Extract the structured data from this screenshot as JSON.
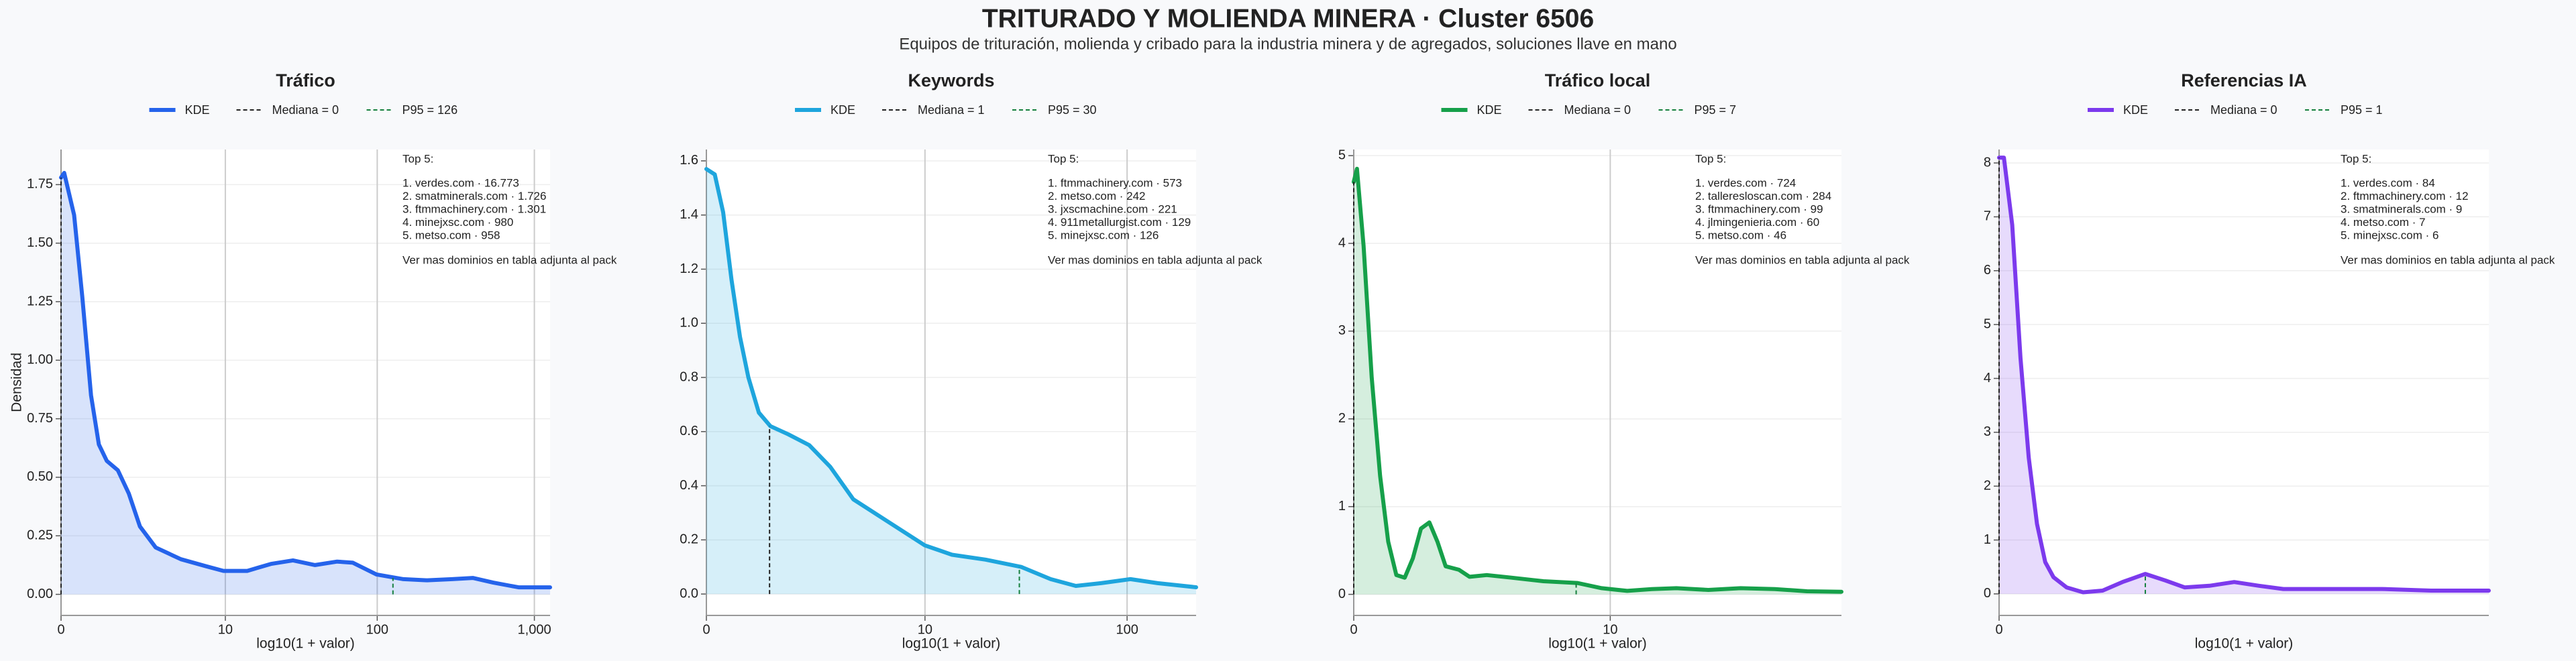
{
  "title": "TRITURADO Y MOLIENDA MINERA · Cluster 6506",
  "subtitle": "Equipos de trituración, molienda y cribado para la industria minera y de agregados, soluciones llave en mano",
  "chart_data": [
    {
      "type": "area",
      "title": "Tráfico",
      "xlabel": "log10(1 + valor)",
      "ylabel": "Densidad",
      "grid": true,
      "x": [
        0,
        0.02,
        0.083,
        0.135,
        0.19,
        0.24,
        0.29,
        0.36,
        0.43,
        0.5,
        0.6,
        0.76,
        0.92,
        1.03,
        1.18,
        1.33,
        1.47,
        1.61,
        1.75,
        1.85,
        2.0,
        2.17,
        2.32,
        2.48,
        2.61,
        2.74,
        2.9,
        3.1
      ],
      "series": [
        {
          "name": "KDE",
          "color": "#2563eb",
          "values": [
            1.78,
            1.8,
            1.62,
            1.27,
            0.85,
            0.64,
            0.57,
            0.53,
            0.43,
            0.29,
            0.2,
            0.15,
            0.12,
            0.1,
            0.1,
            0.13,
            0.145,
            0.125,
            0.14,
            0.135,
            0.085,
            0.065,
            0.06,
            0.065,
            0.07,
            0.05,
            0.03,
            0.03
          ]
        }
      ],
      "markers": [
        {
          "label": "Mediana = 0",
          "color": "#222222",
          "x": 0,
          "y": 1.78
        },
        {
          "label": "P95 = 126",
          "color": "#15803d",
          "x": 2.104,
          "y": 0.07
        }
      ],
      "xlim": [
        0,
        3.1
      ],
      "ylim": [
        -0.09,
        1.9
      ],
      "xticks": [
        0,
        {
          "value": 1.0414,
          "label": "10"
        },
        {
          "value": 2.0043,
          "label": "100"
        },
        {
          "value": 3.0004,
          "label": "1,000"
        }
      ],
      "yticks": [
        {
          "value": 0,
          "label": "0.00"
        },
        0.25,
        {
          "value": 0.5,
          "label": "0.50"
        },
        0.75,
        {
          "value": 1,
          "label": "1.00"
        },
        1.25,
        {
          "value": 1.5,
          "label": "1.50"
        },
        1.75
      ],
      "annotation": [
        "Top 5:",
        "1. verdes.com · 16.773",
        "2. smatminerals.com · 1.726",
        "3. ftmmachinery.com · 1.301",
        "4. minejxsc.com · 980",
        "5. metso.com · 958",
        "Ver mas dominios en tabla adjunta al pack"
      ]
    },
    {
      "type": "area",
      "title": "Keywords",
      "xlabel": "log10(1 + valor)",
      "grid": true,
      "x": [
        0,
        0.04,
        0.08,
        0.12,
        0.16,
        0.2,
        0.25,
        0.305,
        0.39,
        0.49,
        0.59,
        0.7,
        0.86,
        1.04,
        1.17,
        1.33,
        1.5,
        1.64,
        1.76,
        1.88,
        2.02,
        2.15,
        2.333
      ],
      "series": [
        {
          "name": "KDE",
          "color": "#1ea5dd",
          "values": [
            1.57,
            1.55,
            1.41,
            1.16,
            0.95,
            0.8,
            0.67,
            0.62,
            0.59,
            0.55,
            0.47,
            0.35,
            0.27,
            0.18,
            0.145,
            0.127,
            0.1,
            0.055,
            0.03,
            0.04,
            0.055,
            0.04,
            0.025
          ]
        }
      ],
      "markers": [
        {
          "label": "Mediana = 1",
          "color": "#222222",
          "x": 0.301,
          "y": 0.62
        },
        {
          "label": "P95 = 30",
          "color": "#15803d",
          "x": 1.491,
          "y": 0.1
        }
      ],
      "xlim": [
        0,
        2.333
      ],
      "ylim": [
        -0.079,
        1.642
      ],
      "xticks": [
        0,
        {
          "value": 1.0414,
          "label": "10"
        },
        {
          "value": 2.0043,
          "label": "100"
        }
      ],
      "yticks": [
        {
          "value": 0,
          "label": "0.0"
        },
        0.2,
        0.4,
        0.6,
        0.8,
        {
          "value": 1,
          "label": "1.0"
        },
        1.2,
        1.4,
        1.6
      ],
      "annotation": [
        "Top 5:",
        "1. ftmmachinery.com · 573",
        "2. metso.com · 242",
        "3. jxscmachine.com · 221",
        "4. 911metallurgist.com · 129",
        "5. minejxsc.com · 126",
        "Ver mas dominios en tabla adjunta al pack"
      ]
    },
    {
      "type": "area",
      "title": "Tráfico local",
      "xlabel": "log10(1 + valor)",
      "grid": true,
      "x": [
        0,
        0.013,
        0.04,
        0.073,
        0.107,
        0.14,
        0.173,
        0.207,
        0.24,
        0.273,
        0.307,
        0.34,
        0.373,
        0.427,
        0.47,
        0.54,
        0.64,
        0.77,
        0.907,
        1.007,
        1.11,
        1.21,
        1.31,
        1.44,
        1.57,
        1.71,
        1.84,
        1.98
      ],
      "series": [
        {
          "name": "KDE",
          "color": "#16a04a",
          "values": [
            4.7,
            4.85,
            3.97,
            2.47,
            1.35,
            0.6,
            0.22,
            0.19,
            0.41,
            0.75,
            0.82,
            0.6,
            0.32,
            0.28,
            0.2,
            0.22,
            0.19,
            0.15,
            0.13,
            0.07,
            0.04,
            0.06,
            0.07,
            0.05,
            0.07,
            0.06,
            0.035,
            0.03
          ]
        }
      ],
      "markers": [
        {
          "label": "Mediana = 0",
          "color": "#222222",
          "x": 0,
          "y": 4.7
        },
        {
          "label": "P95 = 7",
          "color": "#15803d",
          "x": 0.903,
          "y": 0.13
        }
      ],
      "xlim": [
        0,
        1.98
      ],
      "ylim": [
        -0.24,
        5.07
      ],
      "xticks": [
        0,
        {
          "value": 1.0414,
          "label": "10"
        }
      ],
      "yticks": [
        0,
        1,
        2,
        3,
        4,
        5
      ],
      "annotation": [
        "Top 5:",
        "1. verdes.com · 724",
        "2. talleresloscan.com · 284",
        "3. ftmmachinery.com · 99",
        "4. jlmingenieria.com · 60",
        "5. metso.com · 46",
        "Ver mas dominios en tabla adjunta al pack"
      ]
    },
    {
      "type": "area",
      "title": "Referencias IA",
      "xlabel": "log10(1 + valor)",
      "grid": true,
      "x": [
        0,
        0.01,
        0.027,
        0.044,
        0.061,
        0.078,
        0.095,
        0.112,
        0.139,
        0.173,
        0.213,
        0.254,
        0.301,
        0.342,
        0.382,
        0.433,
        0.484,
        0.535,
        0.585,
        0.687,
        0.788,
        0.889,
        1.008
      ],
      "series": [
        {
          "name": "KDE",
          "color": "#7c3aed",
          "values": [
            8.1,
            8.1,
            6.85,
            4.38,
            2.53,
            1.3,
            0.59,
            0.31,
            0.12,
            0.03,
            0.06,
            0.22,
            0.37,
            0.25,
            0.12,
            0.15,
            0.22,
            0.15,
            0.09,
            0.09,
            0.09,
            0.06,
            0.06
          ]
        }
      ],
      "markers": [
        {
          "label": "Mediana = 0",
          "color": "#222222",
          "x": 0,
          "y": 8.1
        },
        {
          "label": "P95 = 1",
          "color": "#15803d",
          "x": 0.301,
          "y": 0.37
        }
      ],
      "xlim": [
        0,
        1.008
      ],
      "ylim": [
        -0.4,
        8.25
      ],
      "xticks": [
        0
      ],
      "yticks": [
        0,
        1,
        2,
        3,
        4,
        5,
        6,
        7,
        8
      ],
      "annotation": [
        "Top 5:",
        "1. verdes.com · 84",
        "2. ftmmachinery.com · 12",
        "3. smatminerals.com · 9",
        "4. metso.com · 7",
        "5. minejxsc.com · 6",
        "Ver mas dominios en tabla adjunta al pack"
      ]
    }
  ]
}
